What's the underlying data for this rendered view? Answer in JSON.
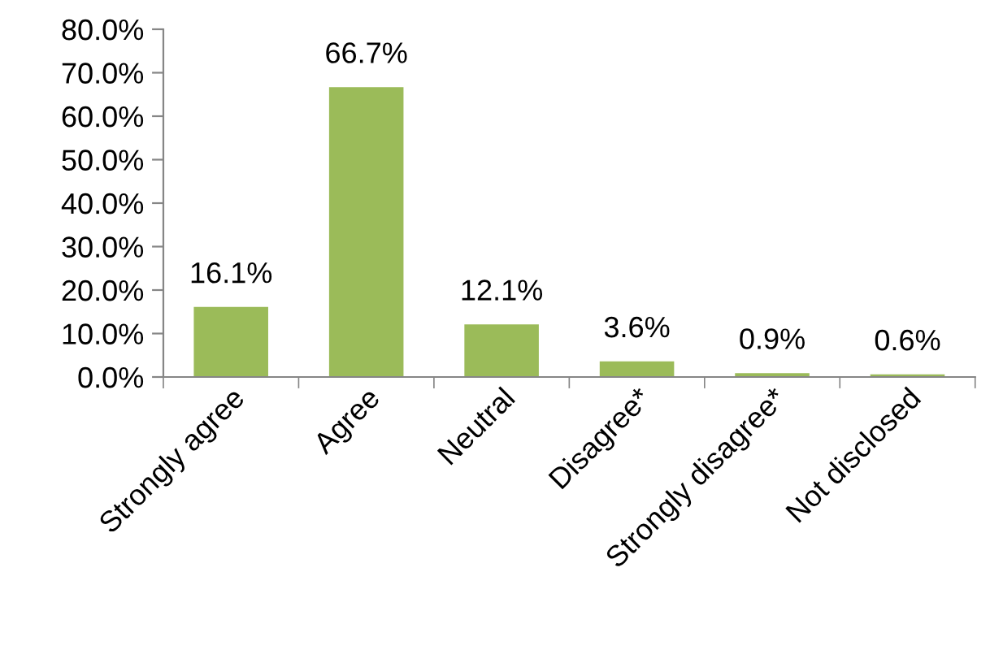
{
  "chart_data": {
    "type": "bar",
    "categories": [
      "Strongly agree",
      "Agree",
      "Neutral",
      "Disagree*",
      "Strongly disagree*",
      "Not disclosed"
    ],
    "values": [
      16.1,
      66.7,
      12.1,
      3.6,
      0.9,
      0.6
    ],
    "color": "#9bbb59",
    "value_labels": [
      "16.1%",
      "66.7%",
      "12.1%",
      "3.6%",
      "0.9%",
      "0.6%"
    ],
    "ylim": [
      0,
      80
    ],
    "yticks": [
      {
        "value": 0,
        "label": "0.0%"
      },
      {
        "value": 10,
        "label": "10.0%"
      },
      {
        "value": 20,
        "label": "20.0%"
      },
      {
        "value": 30,
        "label": "30.0%"
      },
      {
        "value": 40,
        "label": "40.0%"
      },
      {
        "value": 50,
        "label": "50.0%"
      },
      {
        "value": 60,
        "label": "60.0%"
      },
      {
        "value": 70,
        "label": "70.0%"
      },
      {
        "value": 80,
        "label": "80.0%"
      }
    ],
    "grid": false,
    "legend": false
  }
}
